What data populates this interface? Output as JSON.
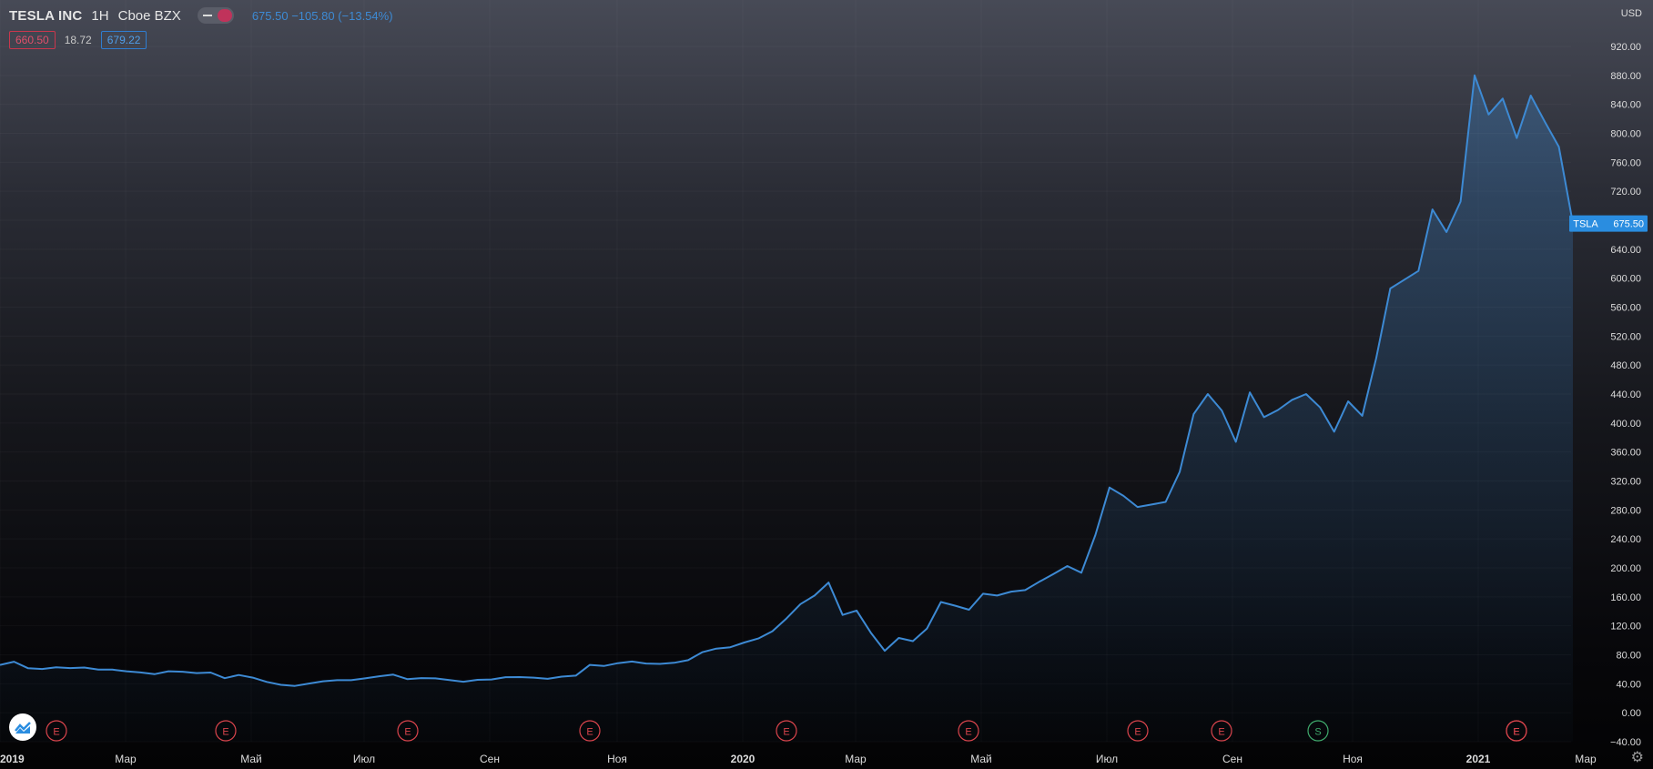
{
  "legend": {
    "symbol": "TESLA INC",
    "interval": "1H",
    "exchange": "Cboe BZX",
    "last": "675.50",
    "change": "−105.80",
    "change_pct": "(−13.54%)"
  },
  "prices": {
    "bid": "660.50",
    "spread": "18.72",
    "ask": "679.22"
  },
  "currency": "USD",
  "last_price_label": {
    "ticker": "TSLA",
    "value": "675.50"
  },
  "colors": {
    "line": "#3d8ad4",
    "earnings_marker": "#d9444c",
    "split_marker": "#3faa6c",
    "label_bg": "#2a8de0"
  },
  "chart_data": {
    "type": "area",
    "series": [
      {
        "values": [
          65.9,
          70.5,
          61.4,
          60.4,
          62.7,
          61.7,
          62.4,
          59.6,
          59.5,
          57.3,
          55.6,
          53.2,
          57.3,
          56.6,
          54.7,
          55.5,
          47.7,
          52.1,
          48.5,
          42.6,
          38.5,
          37.0,
          40.3,
          43.4,
          45.0,
          45.0,
          47.4,
          50.4,
          52.6,
          46.5,
          47.8,
          47.4,
          45.1,
          42.8,
          45.4,
          46.0,
          49.1,
          49.2,
          48.4,
          46.8,
          49.9,
          51.2,
          66.0,
          64.6,
          68.5,
          70.7,
          67.9,
          67.4,
          69.0,
          72.6,
          83.5,
          88.6,
          90.4,
          97.0,
          102.5,
          112.6,
          130.1,
          150.0,
          161.8,
          179.8,
          135.0,
          141.1,
          110.7,
          85.5,
          103.2,
          98.8,
          116.1,
          152.9,
          147.9,
          142.2,
          164.3,
          161.8,
          167.2,
          169.3,
          180.8,
          191.3,
          202.5,
          193.4,
          245.3,
          311.0,
          299.4,
          284.1,
          287.5,
          291.1,
          332.5,
          412.5,
          440.0,
          417.2,
          374.0,
          442.2,
          408.1,
          418.0,
          432.0,
          440.0,
          421.5,
          388.0,
          430.0,
          410.0,
          490.0,
          585.8,
          598.0,
          610.0,
          695.0,
          663.7,
          705.7,
          880.0,
          826.0,
          848.0,
          793.5,
          852.2,
          816.1,
          781.3,
          675.5
        ]
      }
    ],
    "x_ticks": [
      "2019",
      "Мар",
      "Май",
      "Июл",
      "Сен",
      "Ноя",
      "2020",
      "Мар",
      "Май",
      "Июл",
      "Сен",
      "Ноя",
      "2021",
      "Мар"
    ],
    "x_ticks_bold": [
      "2019",
      "2020",
      "2021"
    ],
    "y_ticks": [
      "920.00",
      "880.00",
      "840.00",
      "800.00",
      "760.00",
      "720.00",
      "680.00",
      "640.00",
      "600.00",
      "560.00",
      "520.00",
      "480.00",
      "440.00",
      "400.00",
      "360.00",
      "320.00",
      "280.00",
      "240.00",
      "200.00",
      "160.00",
      "120.00",
      "80.00",
      "40.00",
      "0.00",
      "−40.00"
    ],
    "ylim": [
      -40,
      920
    ],
    "events": [
      "E",
      "E",
      "E",
      "E",
      "E",
      "E",
      "E",
      "E",
      "S",
      "E",
      "E"
    ],
    "grid": true
  }
}
